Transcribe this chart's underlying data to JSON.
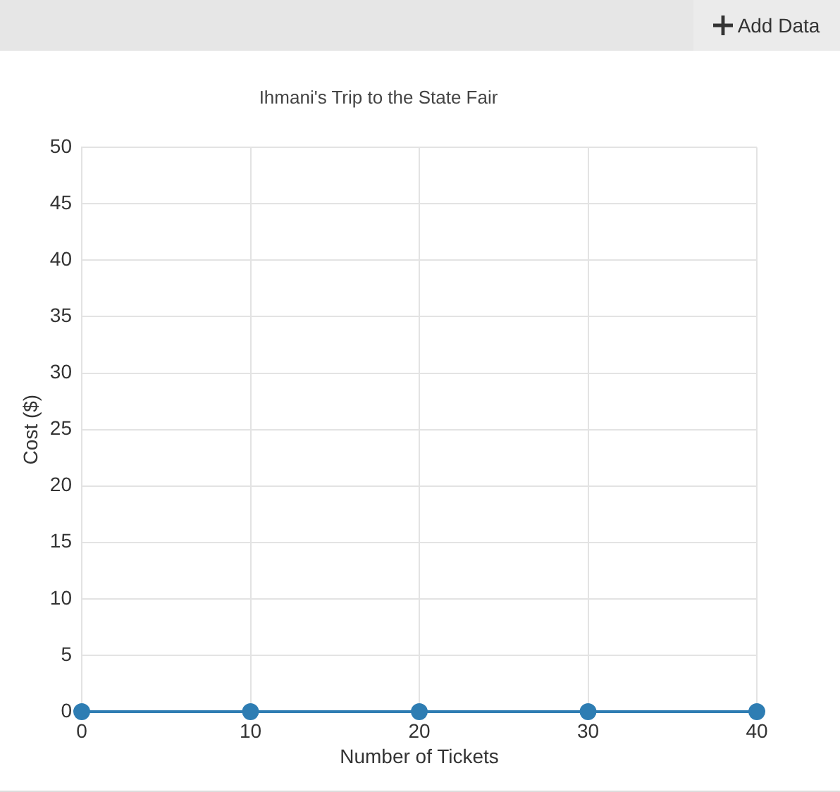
{
  "chart_data": {
    "type": "line",
    "title": "Ihmani's Trip to the State Fair",
    "xlabel": "Number of Tickets",
    "ylabel": "Cost ($)",
    "annotations": [
      "Add Data"
    ],
    "x": [
      0,
      10,
      20,
      30,
      40
    ],
    "series": [
      {
        "color": "#2e7db3",
        "values": [
          0,
          0,
          0,
          0,
          0
        ]
      }
    ],
    "xlim": [
      0,
      40
    ],
    "xticks": [
      0,
      10,
      20,
      30,
      40
    ],
    "ylim": [
      0,
      50
    ],
    "yticks": [
      0,
      5,
      10,
      15,
      20,
      25,
      30,
      35,
      40,
      45,
      50
    ],
    "grid": true,
    "marker": "circle",
    "line_style": "solid"
  }
}
